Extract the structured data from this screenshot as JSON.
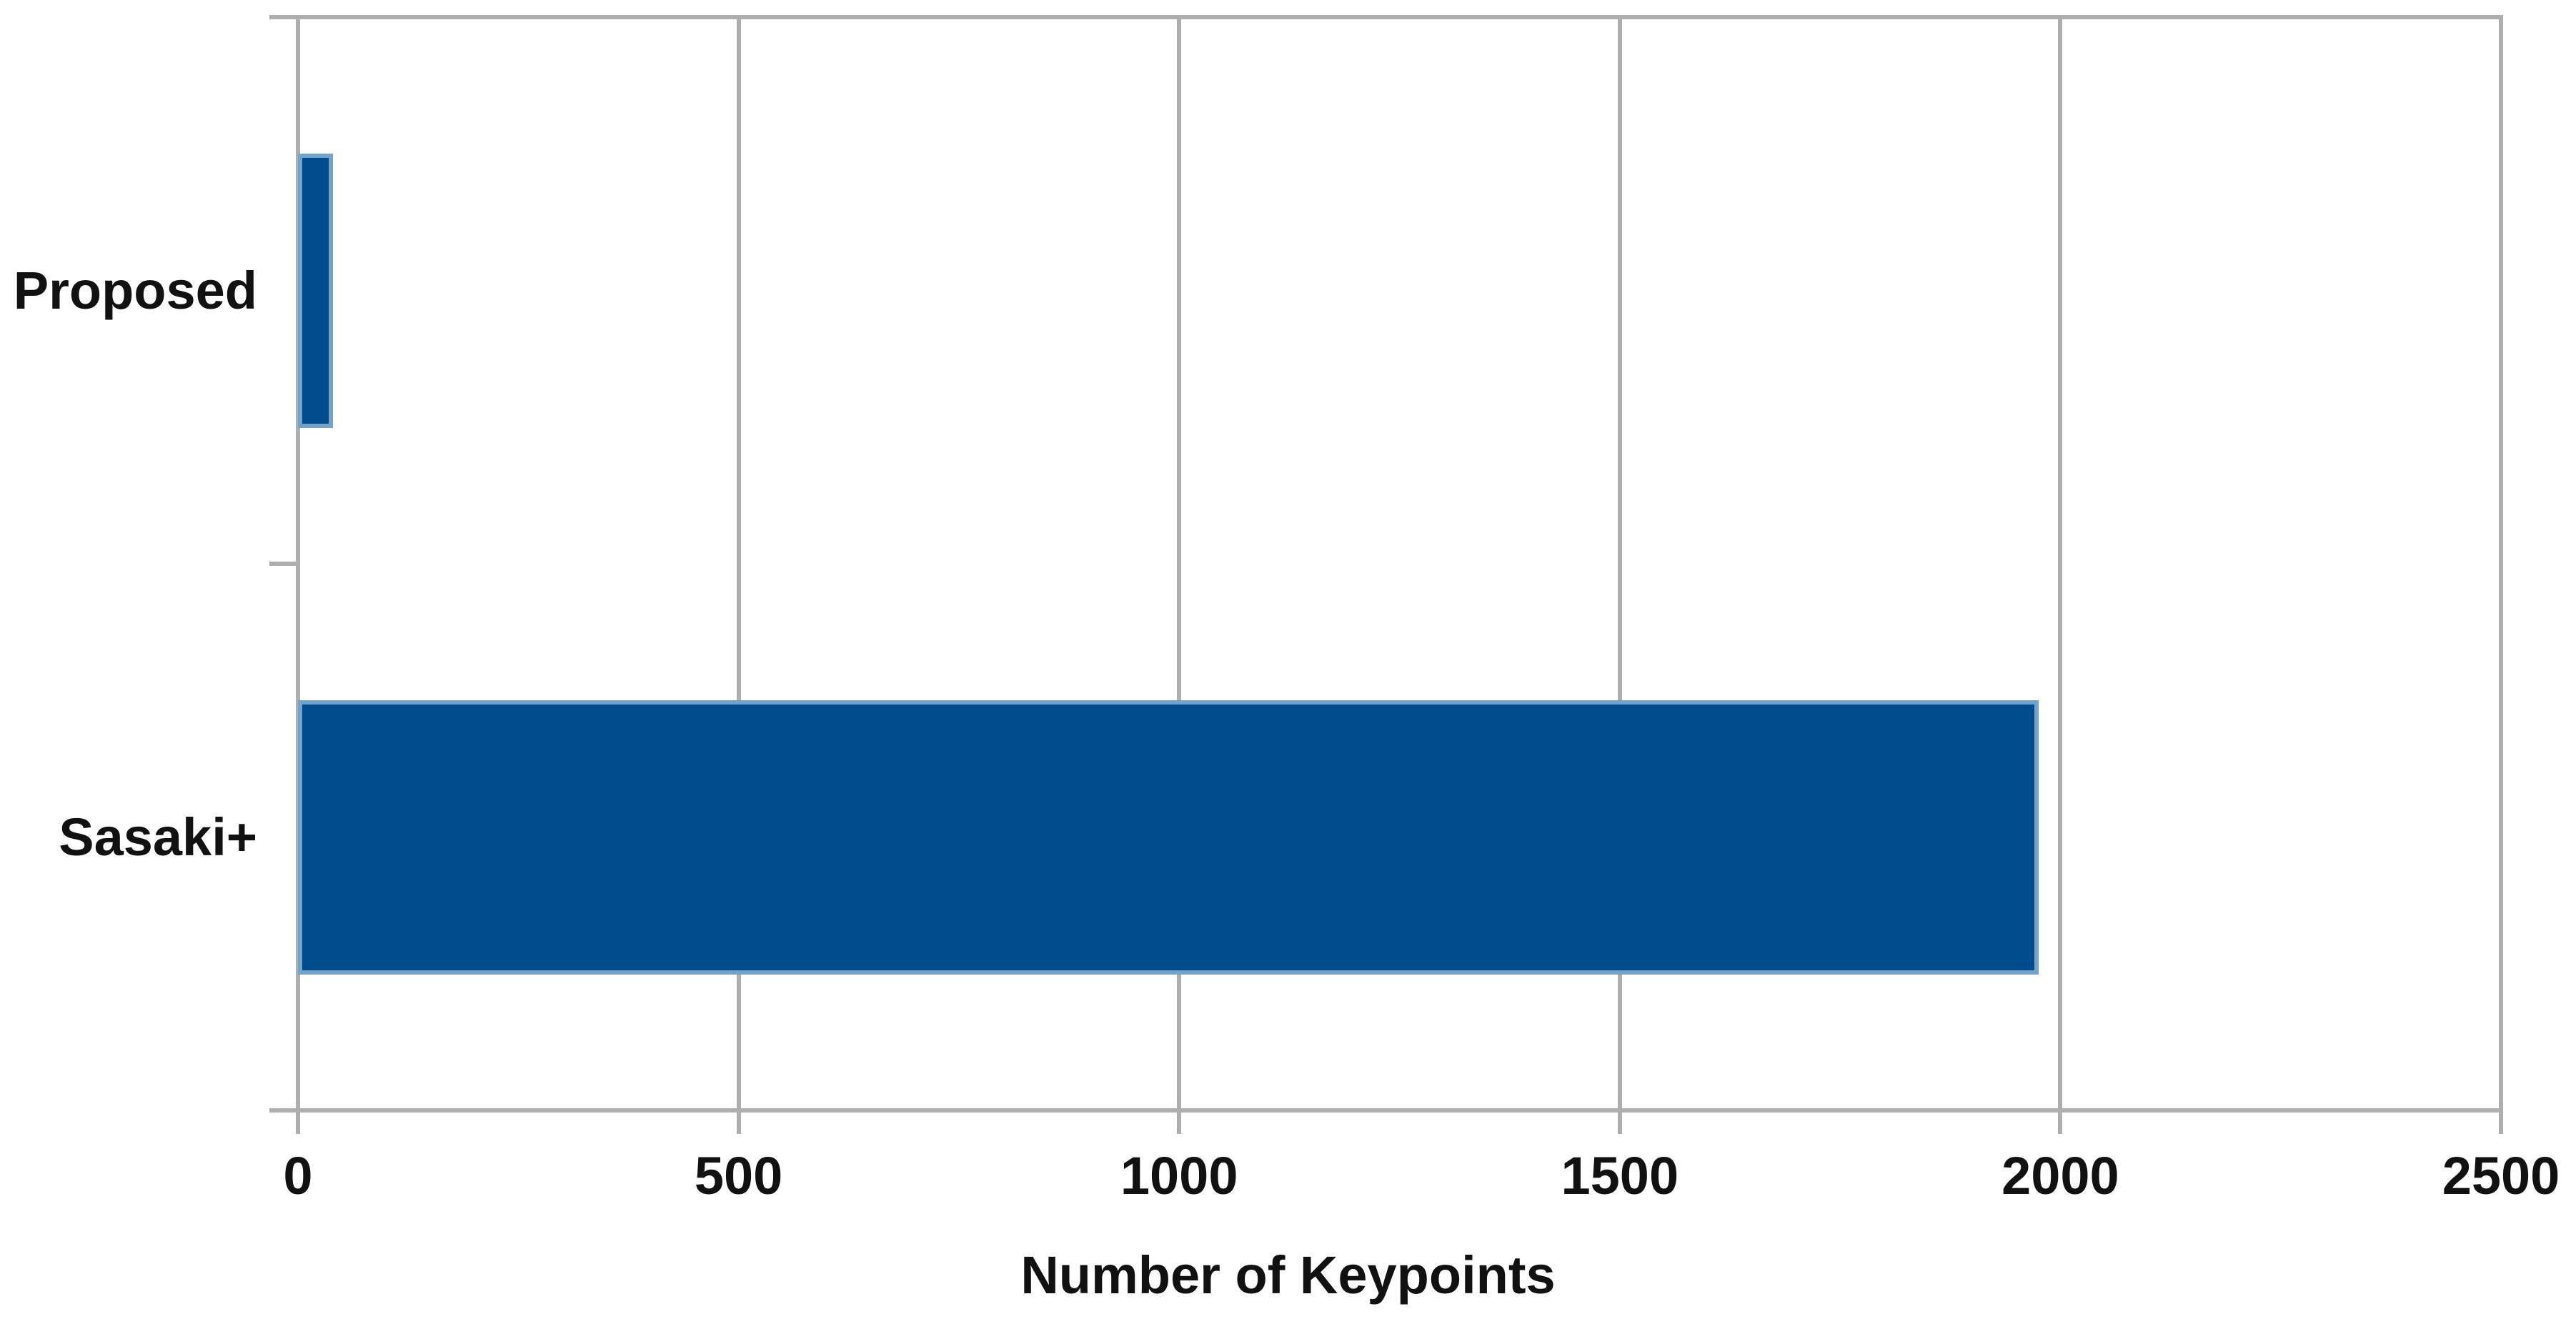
{
  "chart_data": {
    "type": "bar",
    "orientation": "horizontal",
    "title": "",
    "xlabel": "Number of Keypoints",
    "ylabel": "",
    "categories": [
      "Proposed",
      "Sasaki+"
    ],
    "values": [
      40,
      1975
    ],
    "xlim": [
      0,
      2500
    ],
    "x_ticks": [
      0,
      500,
      1000,
      1500,
      2000,
      2500
    ],
    "grid": "vertical gridlines at every x tick",
    "legend": "none",
    "colors": {
      "bar_fill": "#004b8c",
      "bar_border": "#74a3ca",
      "axis_line": "#aeaeae",
      "gridline": "#aeaeae",
      "text": "#111111",
      "background": "#ffffff"
    }
  }
}
